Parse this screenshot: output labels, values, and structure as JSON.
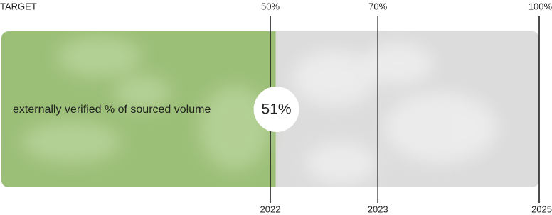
{
  "chart_data": {
    "type": "progress",
    "target_label": "TARGET",
    "description": "externally verified % of sourced volume",
    "values": [
      51
    ],
    "value_labels": [
      "51%"
    ],
    "color": "#9cbf78",
    "track_color": "#dcdcdc",
    "xlim": [
      0,
      100
    ],
    "targets": [
      {
        "value": 50,
        "label": "50%",
        "year": "2022"
      },
      {
        "value": 70,
        "label": "70%",
        "year": "2023"
      },
      {
        "value": 100,
        "label": "100%",
        "year": "2025"
      }
    ]
  }
}
